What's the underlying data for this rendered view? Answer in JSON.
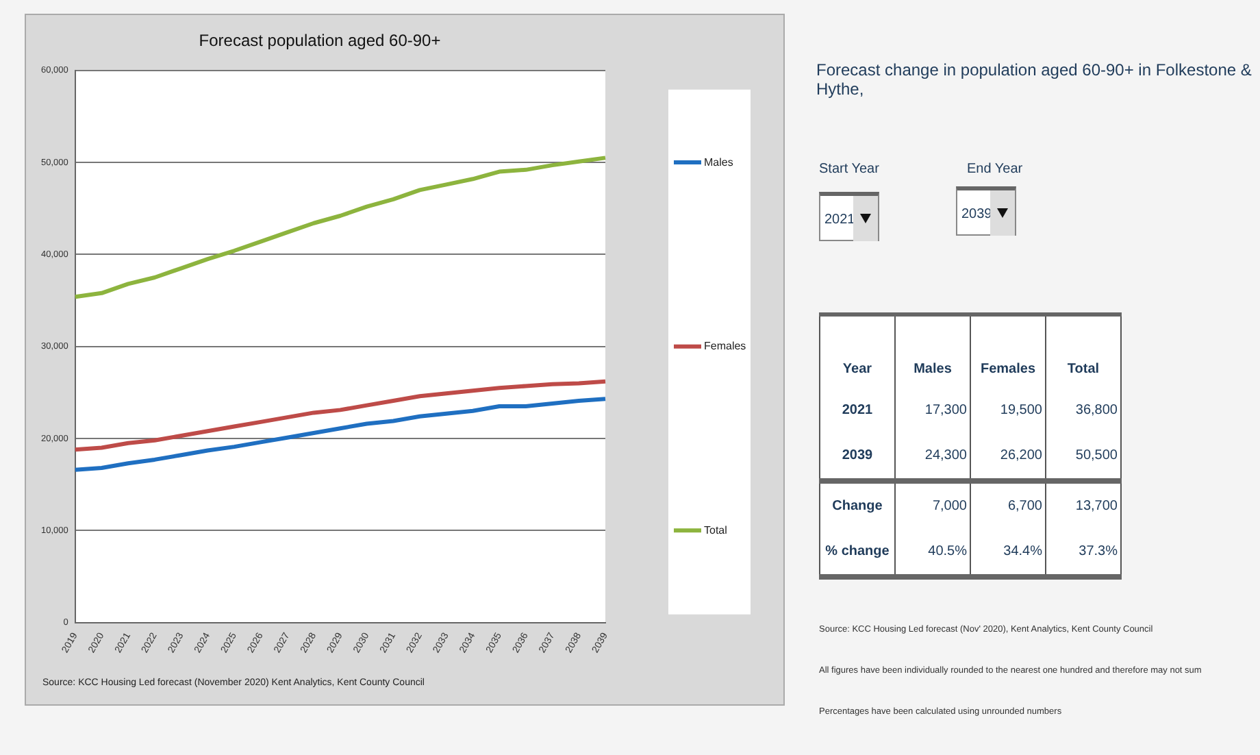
{
  "chart_data": [
    {
      "type": "line",
      "title": "Forecast population aged 60-90+",
      "categories": [
        "2019",
        "2020",
        "2021",
        "2022",
        "2023",
        "2024",
        "2025",
        "2026",
        "2027",
        "2028",
        "2029",
        "2030",
        "2031",
        "2032",
        "2033",
        "2034",
        "2035",
        "2036",
        "2037",
        "2038",
        "2039"
      ],
      "series": [
        {
          "name": "Males",
          "color": "#1f6fc1",
          "values": [
            16600,
            16800,
            17300,
            17700,
            18200,
            18700,
            19100,
            19600,
            20100,
            20600,
            21100,
            21600,
            21900,
            22400,
            22700,
            23000,
            23500,
            23500,
            23800,
            24100,
            24300
          ]
        },
        {
          "name": "Females",
          "color": "#be4b48",
          "values": [
            18800,
            19000,
            19500,
            19800,
            20300,
            20800,
            21300,
            21800,
            22300,
            22800,
            23100,
            23600,
            24100,
            24600,
            24900,
            25200,
            25500,
            25700,
            25900,
            26000,
            26200
          ]
        },
        {
          "name": "Total",
          "color": "#8db43e",
          "values": [
            35400,
            35800,
            36800,
            37500,
            38500,
            39500,
            40400,
            41400,
            42400,
            43400,
            44200,
            45200,
            46000,
            47000,
            47600,
            48200,
            49000,
            49200,
            49700,
            50100,
            50500
          ]
        }
      ],
      "ylim": [
        0,
        60000
      ],
      "yticks": [
        0,
        {
          "value": 10000,
          "label": "10,000"
        },
        {
          "value": 20000,
          "label": "20,000"
        },
        {
          "value": 30000,
          "label": "30,000"
        },
        {
          "value": 40000,
          "label": "40,000"
        },
        {
          "value": 50000,
          "label": "50,000"
        },
        {
          "value": 60000,
          "label": "60,000"
        }
      ],
      "grid": "y",
      "legend": "right",
      "marker": "none",
      "annotations": [
        "Source: KCC Housing Led forecast (November 2020) Kent Analytics, Kent County Council"
      ]
    },
    {
      "type": "other",
      "title": "Forecast change in population aged 60-90+ in Folkestone & Hythe,",
      "annotations": [
        "Start Year",
        "End Year",
        "2021",
        "2039",
        "Year",
        "Males",
        "Females",
        "Total",
        "2021",
        "17,300",
        "19,500",
        "36,800",
        "2039",
        "24,300",
        "26,200",
        "50,500",
        "Change",
        "7,000",
        "6,700",
        "13,700",
        "% change",
        "40.5%",
        "34.4%",
        "37.3%",
        "Source: KCC Housing Led forecast (Nov' 2020), Kent Analytics, Kent County Council",
        "All figures have been individually rounded to the nearest one hundred and therefore may not sum",
        "Percentages have been calculated using unrounded numbers"
      ]
    }
  ]
}
